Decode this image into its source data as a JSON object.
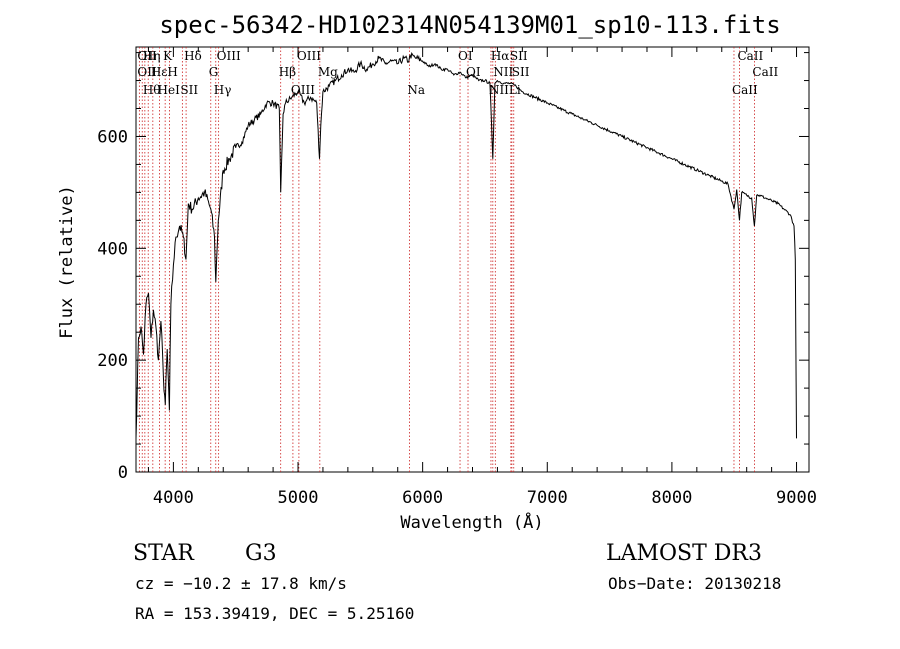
{
  "chart_data": {
    "type": "line",
    "title": "spec-56342-HD102314N054139M01_sp10-113.fits",
    "xlabel": "Wavelength (Å)",
    "ylabel": "Flux (relative)",
    "xlim": [
      3700,
      9100
    ],
    "ylim": [
      0,
      760
    ],
    "xticks": [
      4000,
      5000,
      6000,
      7000,
      8000,
      9000
    ],
    "yticks": [
      0,
      200,
      400,
      600
    ],
    "grid": false,
    "series": [
      {
        "x": [
          3700,
          3720,
          3740,
          3760,
          3780,
          3800,
          3820,
          3840,
          3860,
          3880,
          3900,
          3920,
          3935,
          3950,
          3968,
          3980,
          4000,
          4020,
          4050,
          4080,
          4101,
          4120,
          4150,
          4200,
          4250,
          4300,
          4330,
          4340,
          4360,
          4400,
          4450,
          4500,
          4550,
          4600,
          4650,
          4700,
          4750,
          4800,
          4850,
          4861,
          4880,
          4900,
          4950,
          5000,
          5050,
          5100,
          5150,
          5172,
          5183,
          5200,
          5250,
          5300,
          5350,
          5400,
          5450,
          5500,
          5550,
          5600,
          5650,
          5700,
          5750,
          5800,
          5850,
          5890,
          5900,
          5950,
          6000,
          6050,
          6100,
          6150,
          6200,
          6250,
          6300,
          6350,
          6400,
          6450,
          6500,
          6540,
          6563,
          6580,
          6600,
          6650,
          6700,
          6750,
          6800,
          6900,
          7000,
          7100,
          7200,
          7300,
          7400,
          7500,
          7600,
          7700,
          7800,
          7900,
          8000,
          8100,
          8200,
          8300,
          8400,
          8450,
          8498,
          8520,
          8542,
          8560,
          8600,
          8640,
          8662,
          8680,
          8700,
          8750,
          8800,
          8850,
          8900,
          8950,
          8980,
          8990,
          9000
        ],
        "y": [
          60,
          240,
          260,
          210,
          300,
          320,
          240,
          290,
          260,
          200,
          270,
          170,
          120,
          220,
          110,
          300,
          370,
          420,
          440,
          420,
          380,
          480,
          470,
          490,
          500,
          470,
          420,
          340,
          450,
          540,
          560,
          580,
          590,
          620,
          630,
          640,
          660,
          660,
          650,
          500,
          640,
          660,
          670,
          680,
          660,
          670,
          660,
          560,
          620,
          680,
          690,
          700,
          710,
          720,
          715,
          730,
          720,
          730,
          740,
          730,
          735,
          730,
          740,
          735,
          745,
          740,
          735,
          725,
          730,
          720,
          720,
          710,
          715,
          705,
          710,
          700,
          700,
          695,
          560,
          695,
          700,
          695,
          695,
          690,
          680,
          670,
          660,
          650,
          640,
          630,
          620,
          610,
          600,
          590,
          580,
          570,
          560,
          550,
          540,
          530,
          520,
          515,
          470,
          505,
          450,
          500,
          495,
          490,
          440,
          495,
          495,
          490,
          485,
          480,
          470,
          460,
          440,
          380,
          60
        ]
      }
    ],
    "lines": [
      {
        "x": 3727,
        "labels": [
          "OII",
          "OII"
        ]
      },
      {
        "x": 3750,
        "labels": [],
        "marker_only": true
      },
      {
        "x": 3771,
        "labels": [
          "Hθ",
          "Hη"
        ]
      },
      {
        "x": 3798,
        "labels": [],
        "marker_only": true
      },
      {
        "x": 3835,
        "labels": [
          "Hε"
        ]
      },
      {
        "x": 3889,
        "labels": [
          "HeI"
        ]
      },
      {
        "x": 3934,
        "labels": [
          "K"
        ]
      },
      {
        "x": 3968,
        "labels": [
          "H"
        ]
      },
      {
        "x": 4072,
        "labels": [
          "SII"
        ]
      },
      {
        "x": 4102,
        "labels": [
          "Hδ"
        ]
      },
      {
        "x": 4300,
        "labels": [
          "G"
        ]
      },
      {
        "x": 4340,
        "labels": [
          "Hγ"
        ]
      },
      {
        "x": 4363,
        "labels": [
          "OIII"
        ]
      },
      {
        "x": 4861,
        "labels": [
          "Hβ"
        ]
      },
      {
        "x": 4959,
        "labels": [
          "OIII"
        ]
      },
      {
        "x": 5007,
        "labels": [
          "OIII"
        ]
      },
      {
        "x": 5175,
        "labels": [
          "Mg"
        ]
      },
      {
        "x": 5894,
        "labels": [
          "Na"
        ]
      },
      {
        "x": 6300,
        "labels": [
          "OI"
        ]
      },
      {
        "x": 6364,
        "labels": [
          "OI"
        ]
      },
      {
        "x": 6548,
        "labels": [
          "NII"
        ]
      },
      {
        "x": 6563,
        "labels": [
          "Hα"
        ]
      },
      {
        "x": 6583,
        "labels": [
          "NII"
        ]
      },
      {
        "x": 6708,
        "labels": [
          "Li"
        ]
      },
      {
        "x": 6716,
        "labels": [
          "SII"
        ]
      },
      {
        "x": 6731,
        "labels": [
          "SII"
        ]
      },
      {
        "x": 8498,
        "labels": [
          "CaII"
        ]
      },
      {
        "x": 8542,
        "labels": [
          "CaII"
        ]
      },
      {
        "x": 8662,
        "labels": [
          "CaII"
        ]
      }
    ]
  },
  "info": {
    "object_class": "STAR",
    "subclass": "G3",
    "survey": "LAMOST DR3",
    "cz": "cz = −10.2 ± 17.8 km/s",
    "obs_date": "Obs−Date: 20130218",
    "coords": "RA = 153.39419, DEC =   5.25160"
  }
}
